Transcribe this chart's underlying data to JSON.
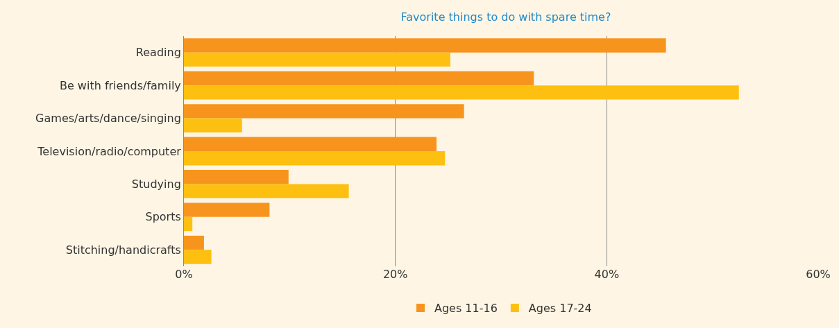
{
  "chart_data": {
    "type": "bar",
    "orientation": "horizontal",
    "title": "Favorite things to do with spare time?",
    "categories": [
      "Reading",
      "Be with friends/family",
      "Games/arts/dance/singing",
      "Television/radio/computer",
      "Studying",
      "Sports",
      "Stitching/handicrafts"
    ],
    "series": [
      {
        "name": "Ages 11-16",
        "color": "#f7941d",
        "values": [
          45.6,
          33.1,
          26.5,
          23.9,
          9.9,
          8.1,
          1.9
        ]
      },
      {
        "name": "Ages 17-24",
        "color": "#fdc010",
        "values": [
          25.2,
          52.5,
          5.5,
          24.7,
          15.6,
          0.8,
          2.6
        ]
      }
    ],
    "xlim": [
      0,
      60
    ],
    "xticks": [
      {
        "value": 0,
        "label": "0%"
      },
      {
        "value": 20,
        "label": "20%"
      },
      {
        "value": 40,
        "label": "40%"
      },
      {
        "value": 60,
        "label": "60%"
      }
    ],
    "grid": "x",
    "legend": "bottom"
  }
}
